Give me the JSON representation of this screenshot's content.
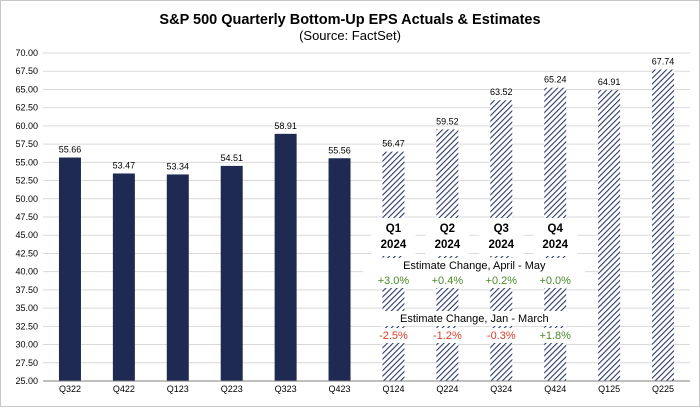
{
  "chart_data": {
    "type": "bar",
    "title": "S&P 500 Quarterly Bottom-Up EPS Actuals & Estimates",
    "subtitle": "(Source: FactSet)",
    "categories": [
      "Q322",
      "Q422",
      "Q123",
      "Q223",
      "Q323",
      "Q423",
      "Q124",
      "Q224",
      "Q324",
      "Q424",
      "Q125",
      "Q225"
    ],
    "values": [
      55.66,
      53.47,
      53.34,
      54.51,
      58.91,
      55.56,
      56.47,
      59.52,
      63.52,
      65.24,
      64.91,
      67.74
    ],
    "value_labels": [
      "55.66",
      "53.47",
      "53.34",
      "54.51",
      "58.91",
      "55.56",
      "56.47",
      "59.52",
      "63.52",
      "65.24",
      "64.91",
      "67.74"
    ],
    "kinds": [
      "actual",
      "actual",
      "actual",
      "actual",
      "actual",
      "actual",
      "estimate",
      "estimate",
      "estimate",
      "estimate",
      "estimate",
      "estimate"
    ],
    "ylim": [
      25,
      70
    ],
    "ytick_labels": [
      "25.00",
      "27.50",
      "30.00",
      "32.50",
      "35.00",
      "37.50",
      "40.00",
      "42.50",
      "45.00",
      "47.50",
      "50.00",
      "52.50",
      "55.00",
      "57.50",
      "60.00",
      "62.50",
      "65.00",
      "67.50",
      "70.00"
    ],
    "grid": true,
    "colors": {
      "actual": "#1f2a52",
      "estimate_hatch": "#2b3966",
      "positive": "#4a8a2a",
      "negative": "#e03a2a"
    },
    "annotations": {
      "quarter_headers": [
        {
          "category": "Q124",
          "line1": "Q1",
          "line2": "2024"
        },
        {
          "category": "Q224",
          "line1": "Q2",
          "line2": "2024"
        },
        {
          "category": "Q324",
          "line1": "Q3",
          "line2": "2024"
        },
        {
          "category": "Q424",
          "line1": "Q4",
          "line2": "2024"
        }
      ],
      "sections": [
        {
          "title": "Estimate Change, April - May",
          "values": [
            {
              "category": "Q124",
              "text": "+3.0%",
              "sign": "positive"
            },
            {
              "category": "Q224",
              "text": "+0.4%",
              "sign": "positive"
            },
            {
              "category": "Q324",
              "text": "+0.2%",
              "sign": "positive"
            },
            {
              "category": "Q424",
              "text": "+0.0%",
              "sign": "positive"
            }
          ]
        },
        {
          "title": "Estimate Change, Jan - March",
          "values": [
            {
              "category": "Q124",
              "text": "-2.5%",
              "sign": "negative"
            },
            {
              "category": "Q224",
              "text": "-1.2%",
              "sign": "negative"
            },
            {
              "category": "Q324",
              "text": "-0.3%",
              "sign": "negative"
            },
            {
              "category": "Q424",
              "text": "+1.8%",
              "sign": "positive"
            }
          ]
        }
      ]
    }
  }
}
